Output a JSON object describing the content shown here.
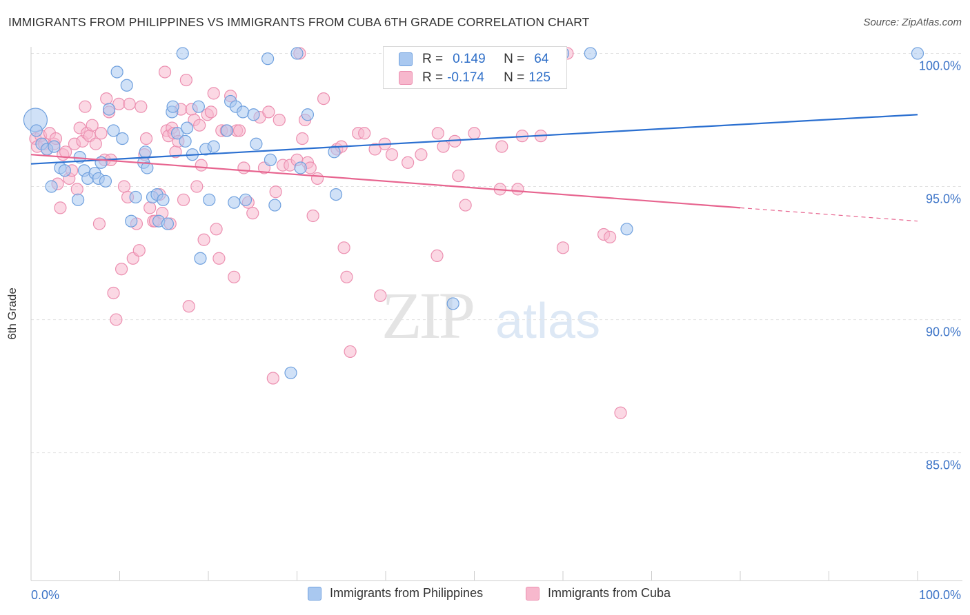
{
  "header": {
    "title": "IMMIGRANTS FROM PHILIPPINES VS IMMIGRANTS FROM CUBA 6TH GRADE CORRELATION CHART",
    "source": "Source: ZipAtlas.com"
  },
  "watermark": {
    "zip": "ZIP",
    "atlas": "atlas"
  },
  "colors": {
    "philippines_fill": "#a9c8f0",
    "philippines_stroke": "#6fa0de",
    "philippines_line": "#2a6fd0",
    "cuba_fill": "#f7b8cd",
    "cuba_stroke": "#ec8fb0",
    "cuba_line": "#e7648f",
    "axis_label": "#3b73c7",
    "grid": "#e2e2e2"
  },
  "stats_legend": {
    "rows": [
      {
        "r_label": "R =",
        "r_value": "0.149",
        "n_label": "N =",
        "n_value": "64"
      },
      {
        "r_label": "R =",
        "r_value": "-0.174",
        "n_label": "N =",
        "n_value": "125"
      }
    ]
  },
  "chart_data": {
    "type": "scatter",
    "title": "IMMIGRANTS FROM PHILIPPINES VS IMMIGRANTS FROM CUBA 6TH GRADE CORRELATION CHART",
    "xlabel": "",
    "ylabel": "6th Grade",
    "xlim": [
      0,
      100
    ],
    "ylim": [
      80.2,
      100.4
    ],
    "x_tick_labels": [
      "0.0%",
      "100.0%"
    ],
    "y_ticks": [
      85,
      90,
      95,
      100
    ],
    "y_tick_labels": [
      "85.0%",
      "90.0%",
      "95.0%",
      "100.0%"
    ],
    "grid": true,
    "legend_position": "bottom",
    "series": [
      {
        "name": "Immigrants from Philippines",
        "trend": {
          "x0": 0,
          "y0": 95.85,
          "x1": 100,
          "y1": 97.7
        },
        "points": [
          [
            0.5,
            97.5
          ],
          [
            0.6,
            97.1
          ],
          [
            1.2,
            96.6
          ],
          [
            1.8,
            96.4
          ],
          [
            2.3,
            95.0
          ],
          [
            2.6,
            96.5
          ],
          [
            3.3,
            95.7
          ],
          [
            3.8,
            95.6
          ],
          [
            5.3,
            94.5
          ],
          [
            5.5,
            96.1
          ],
          [
            6.0,
            95.6
          ],
          [
            6.4,
            95.3
          ],
          [
            7.2,
            95.5
          ],
          [
            7.6,
            95.3
          ],
          [
            7.9,
            95.9
          ],
          [
            8.4,
            95.2
          ],
          [
            8.8,
            97.9
          ],
          [
            9.3,
            97.1
          ],
          [
            9.7,
            99.3
          ],
          [
            10.3,
            96.8
          ],
          [
            10.8,
            98.8
          ],
          [
            11.3,
            93.7
          ],
          [
            11.8,
            94.6
          ],
          [
            12.7,
            95.9
          ],
          [
            12.9,
            96.3
          ],
          [
            13.1,
            95.7
          ],
          [
            13.7,
            94.6
          ],
          [
            14.2,
            94.7
          ],
          [
            14.4,
            93.7
          ],
          [
            14.9,
            94.5
          ],
          [
            15.4,
            93.6
          ],
          [
            15.9,
            97.8
          ],
          [
            16.0,
            98.0
          ],
          [
            16.5,
            97.0
          ],
          [
            17.1,
            100.0
          ],
          [
            17.4,
            96.7
          ],
          [
            17.6,
            97.2
          ],
          [
            18.2,
            96.2
          ],
          [
            18.9,
            98.0
          ],
          [
            19.1,
            92.3
          ],
          [
            19.7,
            96.4
          ],
          [
            20.1,
            94.5
          ],
          [
            20.6,
            96.5
          ],
          [
            22.1,
            97.1
          ],
          [
            22.5,
            98.2
          ],
          [
            22.9,
            94.4
          ],
          [
            23.1,
            98.0
          ],
          [
            23.9,
            97.8
          ],
          [
            24.2,
            94.5
          ],
          [
            25.1,
            97.7
          ],
          [
            25.4,
            96.6
          ],
          [
            26.7,
            99.8
          ],
          [
            27.0,
            96.0
          ],
          [
            27.5,
            94.3
          ],
          [
            29.3,
            88.0
          ],
          [
            30.0,
            100.0
          ],
          [
            30.4,
            95.7
          ],
          [
            31.2,
            97.7
          ],
          [
            34.2,
            96.3
          ],
          [
            34.4,
            94.7
          ],
          [
            47.6,
            90.6
          ],
          [
            60.0,
            100.0
          ],
          [
            63.1,
            100.0
          ],
          [
            67.2,
            93.4
          ],
          [
            100.0,
            100.0
          ]
        ]
      },
      {
        "name": "Immigrants from Cuba",
        "trend": {
          "x0": 0,
          "y0": 96.2,
          "x1": 80,
          "y1": 94.2,
          "dashed_to_x": 100,
          "dashed_to_y": 93.7
        },
        "points": [
          [
            0.5,
            96.8
          ],
          [
            0.7,
            96.5
          ],
          [
            1.1,
            96.9
          ],
          [
            1.5,
            96.6
          ],
          [
            1.8,
            96.4
          ],
          [
            2.1,
            97.0
          ],
          [
            2.6,
            96.6
          ],
          [
            2.8,
            96.8
          ],
          [
            3.0,
            95.1
          ],
          [
            3.3,
            94.2
          ],
          [
            3.6,
            96.2
          ],
          [
            3.9,
            96.3
          ],
          [
            4.3,
            95.3
          ],
          [
            4.6,
            95.6
          ],
          [
            4.9,
            96.6
          ],
          [
            5.2,
            94.9
          ],
          [
            5.5,
            97.2
          ],
          [
            5.8,
            96.7
          ],
          [
            6.1,
            98.0
          ],
          [
            6.3,
            97.0
          ],
          [
            6.6,
            96.9
          ],
          [
            6.9,
            97.3
          ],
          [
            7.3,
            96.6
          ],
          [
            7.7,
            93.6
          ],
          [
            7.9,
            97.0
          ],
          [
            8.3,
            96.0
          ],
          [
            8.5,
            98.3
          ],
          [
            8.8,
            97.8
          ],
          [
            9.0,
            96.0
          ],
          [
            9.3,
            91.0
          ],
          [
            9.6,
            90.0
          ],
          [
            9.9,
            98.1
          ],
          [
            10.2,
            91.9
          ],
          [
            10.5,
            95.0
          ],
          [
            10.9,
            94.6
          ],
          [
            11.1,
            98.1
          ],
          [
            11.5,
            92.3
          ],
          [
            11.9,
            93.6
          ],
          [
            12.2,
            92.6
          ],
          [
            12.4,
            98.0
          ],
          [
            12.8,
            96.2
          ],
          [
            13.0,
            96.8
          ],
          [
            13.4,
            94.2
          ],
          [
            13.8,
            93.7
          ],
          [
            14.0,
            93.7
          ],
          [
            14.5,
            94.7
          ],
          [
            14.8,
            94.0
          ],
          [
            15.1,
            99.3
          ],
          [
            15.3,
            97.1
          ],
          [
            15.5,
            96.9
          ],
          [
            15.7,
            93.6
          ],
          [
            15.9,
            97.2
          ],
          [
            16.1,
            97.0
          ],
          [
            16.3,
            96.3
          ],
          [
            16.6,
            96.7
          ],
          [
            16.9,
            97.9
          ],
          [
            17.2,
            94.5
          ],
          [
            17.5,
            99.0
          ],
          [
            17.8,
            90.5
          ],
          [
            18.1,
            97.9
          ],
          [
            18.4,
            97.5
          ],
          [
            18.7,
            95.0
          ],
          [
            19.0,
            97.3
          ],
          [
            19.2,
            95.8
          ],
          [
            19.5,
            93.0
          ],
          [
            19.9,
            97.7
          ],
          [
            20.3,
            97.8
          ],
          [
            20.6,
            98.5
          ],
          [
            20.9,
            93.4
          ],
          [
            21.2,
            92.3
          ],
          [
            21.5,
            97.1
          ],
          [
            22.0,
            97.1
          ],
          [
            22.5,
            98.4
          ],
          [
            22.9,
            91.6
          ],
          [
            23.2,
            97.1
          ],
          [
            23.5,
            97.1
          ],
          [
            24.0,
            95.7
          ],
          [
            24.5,
            94.4
          ],
          [
            25.0,
            94.0
          ],
          [
            25.8,
            97.6
          ],
          [
            26.3,
            95.7
          ],
          [
            26.8,
            97.8
          ],
          [
            27.3,
            87.8
          ],
          [
            27.6,
            94.8
          ],
          [
            28.0,
            97.5
          ],
          [
            28.4,
            95.8
          ],
          [
            29.2,
            95.8
          ],
          [
            30.0,
            96.0
          ],
          [
            30.3,
            100.0
          ],
          [
            30.6,
            96.8
          ],
          [
            30.9,
            97.5
          ],
          [
            31.2,
            95.9
          ],
          [
            31.5,
            95.7
          ],
          [
            31.8,
            93.9
          ],
          [
            32.3,
            95.3
          ],
          [
            33.0,
            98.3
          ],
          [
            34.5,
            96.4
          ],
          [
            35.0,
            96.5
          ],
          [
            35.3,
            92.7
          ],
          [
            35.6,
            91.6
          ],
          [
            36.0,
            88.8
          ],
          [
            36.9,
            97.0
          ],
          [
            37.6,
            97.0
          ],
          [
            38.8,
            96.4
          ],
          [
            39.4,
            90.9
          ],
          [
            39.9,
            96.6
          ],
          [
            40.7,
            96.2
          ],
          [
            42.5,
            95.9
          ],
          [
            44.0,
            96.2
          ],
          [
            45.8,
            92.4
          ],
          [
            45.9,
            97.0
          ],
          [
            46.5,
            96.5
          ],
          [
            47.8,
            96.7
          ],
          [
            48.2,
            95.4
          ],
          [
            49.0,
            94.3
          ],
          [
            50.0,
            97.0
          ],
          [
            52.9,
            94.9
          ],
          [
            53.1,
            96.5
          ],
          [
            54.9,
            94.9
          ],
          [
            55.4,
            96.9
          ],
          [
            57.5,
            96.9
          ],
          [
            60.0,
            92.7
          ],
          [
            60.5,
            100.0
          ],
          [
            64.6,
            93.2
          ],
          [
            65.3,
            93.1
          ],
          [
            66.5,
            86.5
          ]
        ]
      }
    ]
  }
}
